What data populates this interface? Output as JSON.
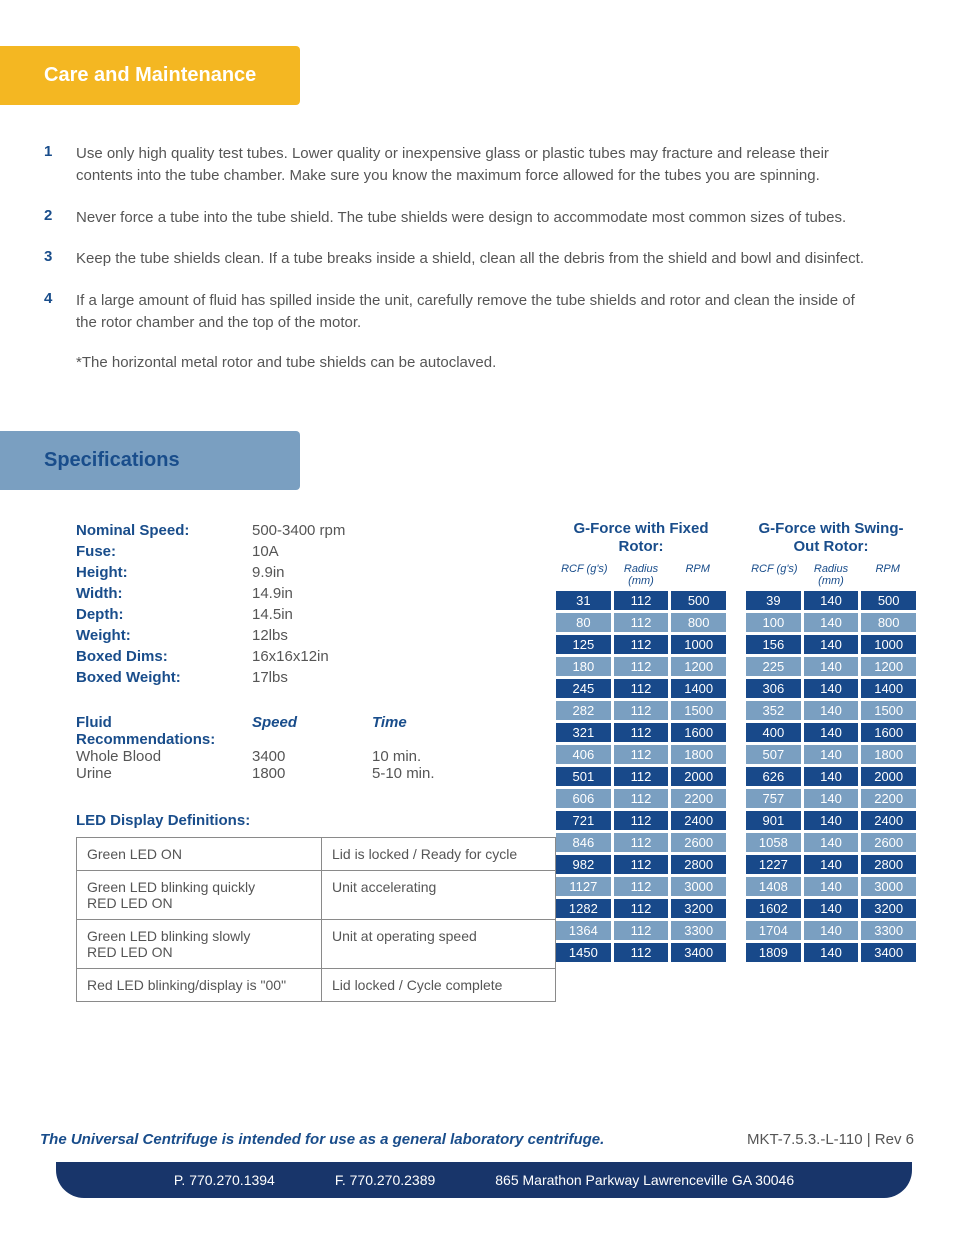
{
  "colors": {
    "primary_blue": "#194d8b",
    "banner_yellow": "#f4b722",
    "banner_blue": "#7a9fc1",
    "text_gray": "#555555",
    "footer_bar": "#18356a",
    "row_dark": "#18498a",
    "row_light": "#7a9fc1"
  },
  "section1": {
    "title": "Care and Maintenance"
  },
  "care": [
    "Use only high quality test tubes. Lower quality or inexpensive glass or plastic tubes may fracture and release their contents into the tube chamber. Make sure you know the maximum force allowed for the tubes you are spinning.",
    "Never force a tube into the tube shield. The tube shields were design to accommodate most common sizes of tubes.",
    "Keep the tube shields clean. If a tube breaks inside a shield, clean all the debris from the shield and bowl and disinfect.",
    "If a large amount of fluid has spilled inside the unit, carefully remove the tube shields and rotor and clean the inside of the rotor chamber and the top of the motor."
  ],
  "care_note": "*The horizontal metal rotor and tube shields can be autoclaved.",
  "section2": {
    "title": "Specifications"
  },
  "specs": [
    {
      "label": "Nominal Speed:",
      "value": "500-3400 rpm"
    },
    {
      "label": "Fuse:",
      "value": "10A"
    },
    {
      "label": "Height:",
      "value": "9.9in"
    },
    {
      "label": "Width:",
      "value": "14.9in"
    },
    {
      "label": "Depth:",
      "value": "14.5in"
    },
    {
      "label": "Weight:",
      "value": "12lbs"
    },
    {
      "label": "Boxed Dims:",
      "value": "16x16x12in"
    },
    {
      "label": "Boxed Weight:",
      "value": "17lbs"
    }
  ],
  "fluid": {
    "header_label": "Fluid Recommendations:",
    "speed_hdr": "Speed",
    "time_hdr": "Time",
    "rows": [
      {
        "name": "Whole Blood",
        "speed": "3400",
        "time": "10 min."
      },
      {
        "name": "Urine",
        "speed": "1800",
        "time": "5-10 min."
      }
    ]
  },
  "led": {
    "title": "LED Display Definitions:",
    "rows": [
      {
        "c1": "Green LED ON",
        "c2": "Lid is locked / Ready for cycle"
      },
      {
        "c1": "Green LED blinking quickly\nRED LED ON",
        "c2": "Unit accelerating"
      },
      {
        "c1": "Green LED blinking slowly\nRED LED ON",
        "c2": "Unit at operating speed"
      },
      {
        "c1": "Red LED blinking/display is \"00\"",
        "c2": "Lid locked / Cycle complete"
      }
    ]
  },
  "gforce": {
    "col_hdrs": {
      "rcf": "RCF (g's)",
      "radius": "Radius (mm)",
      "rpm": "RPM"
    },
    "fixed": {
      "title": "G-Force with Fixed Rotor:",
      "radius": 112,
      "rows": [
        [
          31,
          500
        ],
        [
          80,
          800
        ],
        [
          125,
          1000
        ],
        [
          180,
          1200
        ],
        [
          245,
          1400
        ],
        [
          282,
          1500
        ],
        [
          321,
          1600
        ],
        [
          406,
          1800
        ],
        [
          501,
          2000
        ],
        [
          606,
          2200
        ],
        [
          721,
          2400
        ],
        [
          846,
          2600
        ],
        [
          982,
          2800
        ],
        [
          1127,
          3000
        ],
        [
          1282,
          3200
        ],
        [
          1364,
          3300
        ],
        [
          1450,
          3400
        ]
      ]
    },
    "swing": {
      "title": "G-Force with Swing-Out Rotor:",
      "radius": 140,
      "rows": [
        [
          39,
          500
        ],
        [
          100,
          800
        ],
        [
          156,
          1000
        ],
        [
          225,
          1200
        ],
        [
          306,
          1400
        ],
        [
          352,
          1500
        ],
        [
          400,
          1600
        ],
        [
          507,
          1800
        ],
        [
          626,
          2000
        ],
        [
          757,
          2200
        ],
        [
          901,
          2400
        ],
        [
          1058,
          2600
        ],
        [
          1227,
          2800
        ],
        [
          1408,
          3000
        ],
        [
          1602,
          3200
        ],
        [
          1704,
          3300
        ],
        [
          1809,
          3400
        ]
      ]
    }
  },
  "footer": {
    "intent": "The Universal Centrifuge is intended for use as a general laboratory centrifuge.",
    "code": "MKT-7.5.3.-L-110 | Rev 6",
    "phone": "P. 770.270.1394",
    "fax": "F. 770.270.2389",
    "address": "865 Marathon Parkway Lawrenceville GA 30046"
  }
}
